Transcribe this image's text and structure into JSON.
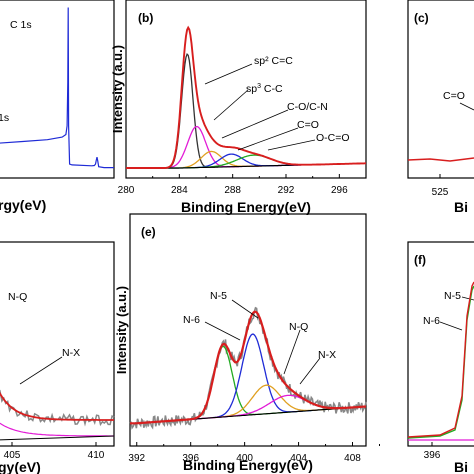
{
  "chart_data": [
    {
      "id": "a",
      "type": "line",
      "xlabel": "Binding Energy(eV)",
      "xlabel_visible": "rgy(eV)",
      "xticks": [],
      "annotations": [
        "C 1s",
        "1s"
      ],
      "series": [
        {
          "color": "#1f2bd6",
          "x": [
            0,
            100,
            200,
            260,
            275,
            280,
            283,
            284.5,
            286,
            290,
            300,
            380,
            390,
            395,
            398,
            401,
            404,
            408,
            430,
            470
          ],
          "y": [
            0.2,
            0.21,
            0.22,
            0.235,
            0.25,
            0.3,
            0.55,
            0.98,
            0.3,
            0.08,
            0.075,
            0.07,
            0.072,
            0.08,
            0.1,
            0.12,
            0.1,
            0.065,
            0.06,
            0.06
          ]
        }
      ]
    },
    {
      "id": "b",
      "type": "line",
      "panel_label": "(b)",
      "xlabel": "Binding Energy(eV)",
      "ylabel": "Intensity (a.u.)",
      "xlim": [
        280,
        298
      ],
      "xticks": [
        "280",
        "284",
        "288",
        "292",
        "296"
      ],
      "annotations": [
        "sp² C=C",
        "sp³ C-C",
        "C-O/C-N",
        "C=O",
        "O-C=O"
      ],
      "peaks": [
        {
          "name": "sp² C=C",
          "center": 284.6,
          "fwhm": 1.0,
          "height": 0.72,
          "color": "#333333"
        },
        {
          "name": "sp³ C-C",
          "center": 285.3,
          "fwhm": 1.6,
          "height": 0.26,
          "color": "#e21bd6"
        },
        {
          "name": "C-O/C-N",
          "center": 286.4,
          "fwhm": 1.8,
          "height": 0.1,
          "color": "#e0a020"
        },
        {
          "name": "C=O",
          "center": 287.9,
          "fwhm": 2.0,
          "height": 0.08,
          "color": "#1f2bd6"
        },
        {
          "name": "O-C=O",
          "center": 289.6,
          "fwhm": 3.0,
          "height": 0.07,
          "color": "#22aa22"
        }
      ],
      "envelope_color": "#d81e1e",
      "background_color": "#000000"
    },
    {
      "id": "c",
      "type": "line",
      "panel_label": "(c)",
      "xlabel": "Binding Energy(eV)",
      "xlabel_visible": "Bi",
      "xticks": [
        "525"
      ],
      "annotations": [
        "C=O"
      ]
    },
    {
      "id": "d",
      "type": "line",
      "xlabel": "Binding Energy(eV)",
      "xlabel_visible": "gy(eV)",
      "xticks": [
        "405",
        "410"
      ],
      "annotations": [
        "N-Q",
        "N-X"
      ]
    },
    {
      "id": "e",
      "type": "line",
      "panel_label": "(e)",
      "xlabel": "Binding Energy(eV)",
      "ylabel": "Intensity (a.u.)",
      "xlim": [
        391.5,
        409
      ],
      "xticks": [
        "392",
        "396",
        "400",
        "404",
        "408"
      ],
      "annotations": [
        "N-5",
        "N-6",
        "N-Q",
        "N-X"
      ],
      "peaks": [
        {
          "name": "N-6",
          "center": 398.4,
          "fwhm": 1.6,
          "height": 0.42,
          "color": "#22aa22"
        },
        {
          "name": "N-5",
          "center": 400.6,
          "fwhm": 1.9,
          "height": 0.48,
          "color": "#1f2bd6"
        },
        {
          "name": "N-Q",
          "center": 401.6,
          "fwhm": 2.4,
          "height": 0.17,
          "color": "#e0a020"
        },
        {
          "name": "N-X",
          "center": 403.2,
          "fwhm": 3.2,
          "height": 0.1,
          "color": "#e21bd6"
        }
      ],
      "envelope_color": "#d81e1e",
      "raw_color": "#888888",
      "background_color": "#000000"
    },
    {
      "id": "f",
      "type": "line",
      "panel_label": "(f)",
      "xlabel": "Binding Energy(eV)",
      "xlabel_visible": "Bi",
      "xticks": [
        "396"
      ],
      "annotations": [
        "N-5",
        "N-6"
      ]
    }
  ]
}
